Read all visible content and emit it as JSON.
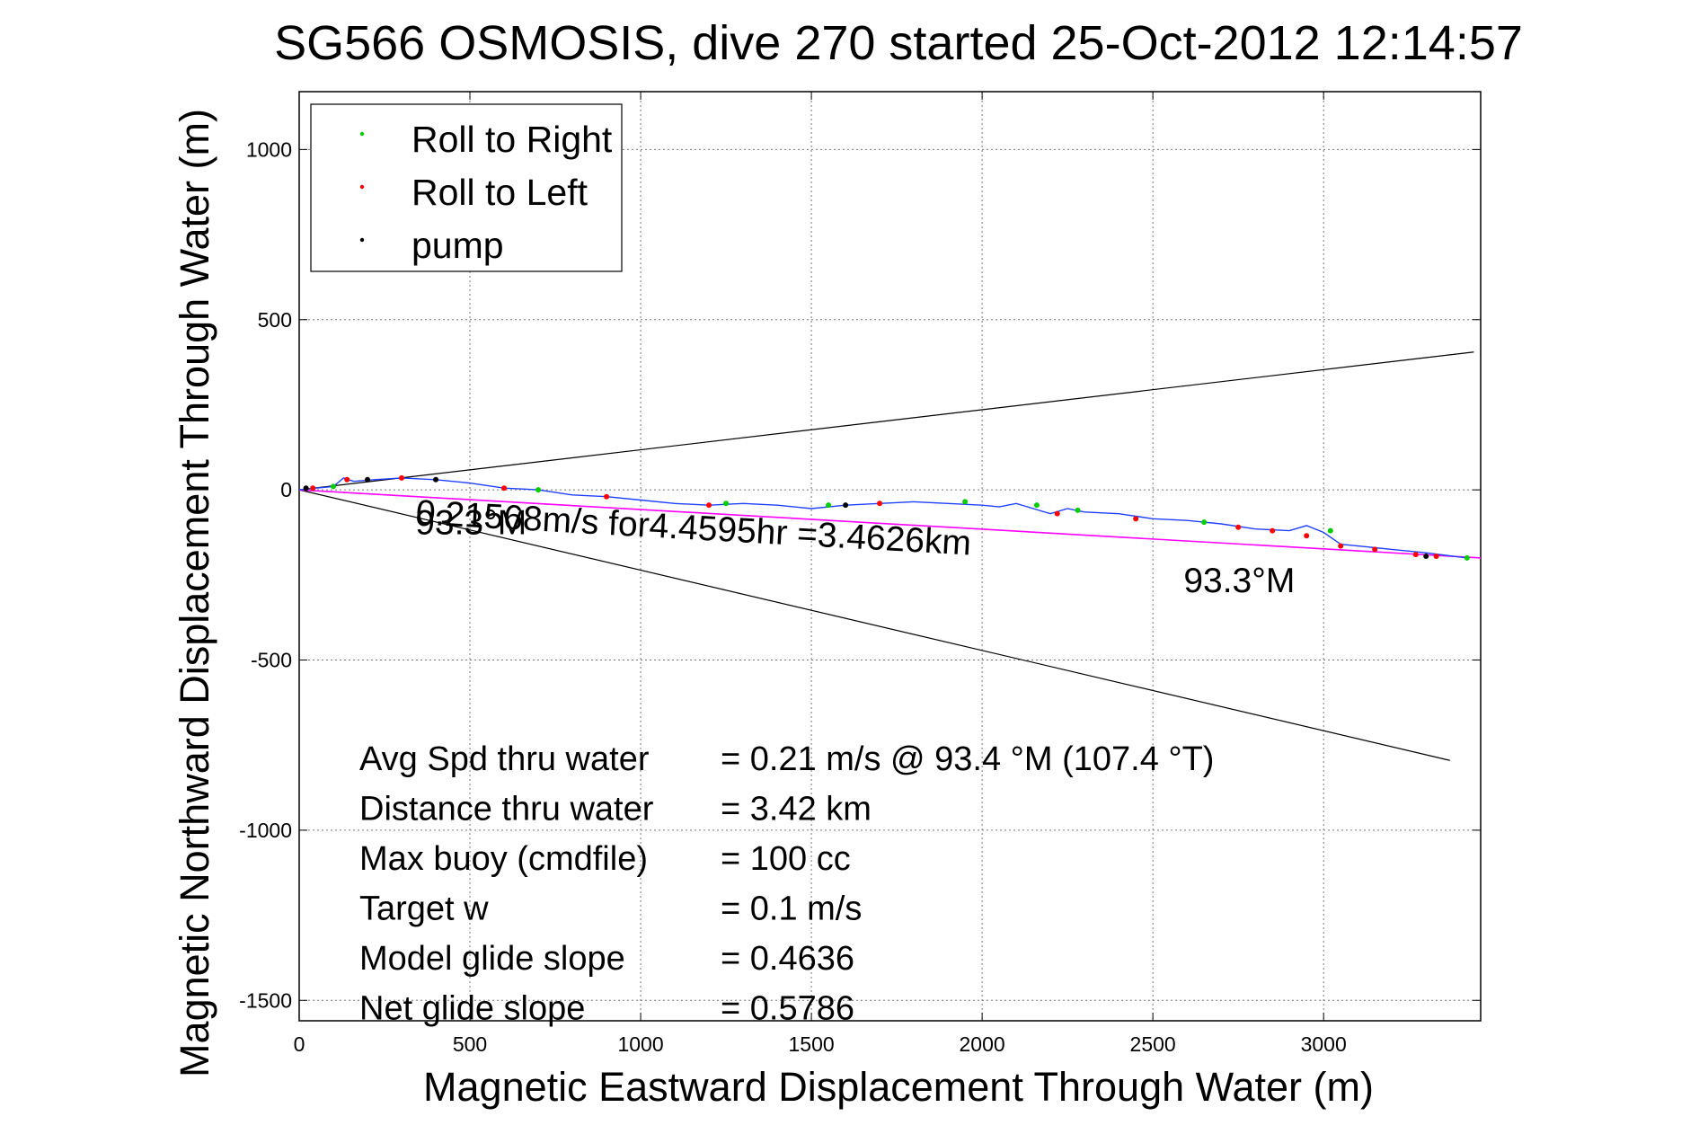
{
  "chart_data": {
    "type": "scatter",
    "title": "SG566 OSMOSIS, dive 270 started 25-Oct-2012 12:14:57",
    "xlabel": "Magnetic Eastward Displacement Through Water (m)",
    "ylabel": "Magnetic Northward Displacement Through Water (m)",
    "xlim": [
      0,
      3460
    ],
    "ylim": [
      -1560,
      1170
    ],
    "xticks": [
      0,
      500,
      1000,
      1500,
      2000,
      2500,
      3000
    ],
    "yticks": [
      -1500,
      -1000,
      -500,
      0,
      500,
      1000
    ],
    "grid": true,
    "legend_position": "top-left",
    "colors": {
      "track": "#2040ff",
      "heading": "#ff00ff",
      "envelope": "#000000",
      "roll_right": "#00cc00",
      "roll_left": "#ff0000",
      "pump": "#000000"
    },
    "legend": [
      {
        "label": "Roll to Right",
        "color": "#00cc00"
      },
      {
        "label": "Roll to Left",
        "color": "#ff0000"
      },
      {
        "label": "pump",
        "color": "#000000"
      }
    ],
    "lines": {
      "envelope_upper": {
        "x": [
          0,
          3440
        ],
        "y": [
          0,
          405
        ]
      },
      "envelope_lower": {
        "x": [
          0,
          3370
        ],
        "y": [
          0,
          -795
        ]
      },
      "heading": {
        "x": [
          0,
          3460
        ],
        "y": [
          0,
          -200
        ]
      }
    },
    "track": {
      "x": [
        0,
        50,
        100,
        130,
        160,
        220,
        300,
        400,
        500,
        600,
        700,
        800,
        900,
        1000,
        1100,
        1200,
        1300,
        1400,
        1500,
        1600,
        1700,
        1800,
        1900,
        2000,
        2050,
        2100,
        2150,
        2200,
        2250,
        2300,
        2400,
        2500,
        2600,
        2700,
        2800,
        2900,
        2950,
        3000,
        3050,
        3100,
        3200,
        3300,
        3420
      ],
      "y": [
        0,
        5,
        10,
        35,
        25,
        30,
        35,
        30,
        20,
        5,
        0,
        -15,
        -20,
        -30,
        -40,
        -45,
        -40,
        -45,
        -55,
        -45,
        -40,
        -35,
        -40,
        -45,
        -50,
        -40,
        -55,
        -70,
        -55,
        -65,
        -70,
        -85,
        -90,
        -100,
        -115,
        -120,
        -105,
        -125,
        -160,
        -165,
        -175,
        -185,
        -200
      ]
    },
    "roll_right": {
      "x": [
        100,
        700,
        1250,
        1550,
        1950,
        2160,
        2280,
        2650,
        3020,
        3420
      ],
      "y": [
        10,
        0,
        -40,
        -45,
        -35,
        -45,
        -60,
        -95,
        -120,
        -200
      ]
    },
    "roll_left": {
      "x": [
        40,
        140,
        300,
        600,
        900,
        1200,
        1700,
        2220,
        2450,
        2750,
        2850,
        2950,
        3050,
        3150,
        3270,
        3330
      ],
      "y": [
        5,
        30,
        35,
        5,
        -20,
        -45,
        -40,
        -70,
        -85,
        -110,
        -120,
        -135,
        -165,
        -175,
        -190,
        -195
      ]
    },
    "pump": {
      "x": [
        20,
        200,
        400,
        1600,
        3300
      ],
      "y": [
        5,
        30,
        30,
        -45,
        -195
      ]
    },
    "annotations": [
      {
        "text": "0.21568m/s for4.4595hr =3.4626km",
        "x": 340,
        "y": -100
      },
      {
        "text": "93.3°M",
        "x": 340,
        "y": -130
      },
      {
        "text": "93.3°M",
        "x": 2590,
        "y": -300
      }
    ],
    "stats": [
      {
        "label": "Avg Spd thru water",
        "value": "=  0.21 m/s @  93.4 °M (107.4 °T)"
      },
      {
        "label": "Distance thru water",
        "value": "=  3.42 km"
      },
      {
        "label": "Max buoy (cmdfile)",
        "value": "= 100 cc"
      },
      {
        "label": "Target w",
        "value": "= 0.1 m/s"
      },
      {
        "label": "Model glide slope",
        "value": "= 0.4636"
      },
      {
        "label": "Net glide slope",
        "value": "= 0.5786"
      }
    ]
  }
}
